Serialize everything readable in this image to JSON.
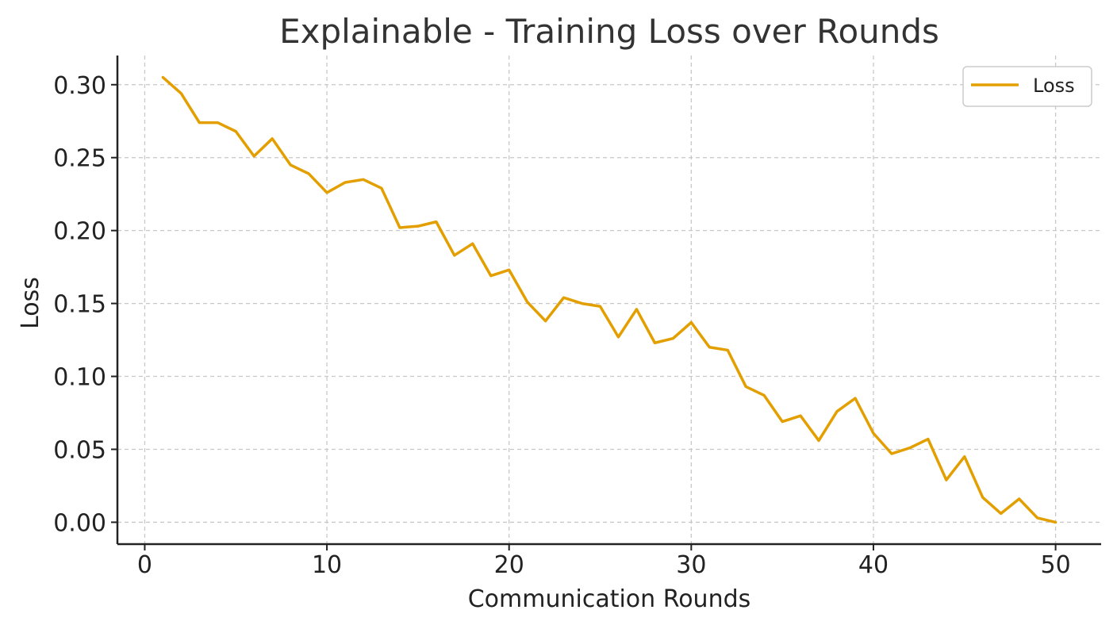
{
  "chart_data": {
    "type": "line",
    "title": "Explainable - Training Loss over Rounds",
    "xlabel": "Communication Rounds",
    "ylabel": "Loss",
    "xlim": [
      -1.5,
      52.5
    ],
    "ylim": [
      -0.015,
      0.32
    ],
    "xticks": [
      0,
      10,
      20,
      30,
      40,
      50
    ],
    "xtick_labels": [
      "0",
      "10",
      "20",
      "30",
      "40",
      "50"
    ],
    "yticks": [
      0.0,
      0.05,
      0.1,
      0.15,
      0.2,
      0.25,
      0.3
    ],
    "ytick_labels": [
      "0.00",
      "0.05",
      "0.10",
      "0.15",
      "0.20",
      "0.25",
      "0.30"
    ],
    "grid": true,
    "legend_position": "top-right",
    "series": [
      {
        "name": "Loss",
        "color": "#E39F00",
        "x": [
          1,
          2,
          3,
          4,
          5,
          6,
          7,
          8,
          9,
          10,
          11,
          12,
          13,
          14,
          15,
          16,
          17,
          18,
          19,
          20,
          21,
          22,
          23,
          24,
          25,
          26,
          27,
          28,
          29,
          30,
          31,
          32,
          33,
          34,
          35,
          36,
          37,
          38,
          39,
          40,
          41,
          42,
          43,
          44,
          45,
          46,
          47,
          48,
          49,
          50
        ],
        "values": [
          0.305,
          0.294,
          0.274,
          0.274,
          0.268,
          0.251,
          0.263,
          0.245,
          0.239,
          0.226,
          0.233,
          0.235,
          0.229,
          0.202,
          0.203,
          0.206,
          0.183,
          0.191,
          0.169,
          0.173,
          0.151,
          0.138,
          0.154,
          0.15,
          0.148,
          0.127,
          0.146,
          0.123,
          0.126,
          0.137,
          0.12,
          0.118,
          0.093,
          0.087,
          0.069,
          0.073,
          0.056,
          0.076,
          0.085,
          0.061,
          0.047,
          0.051,
          0.057,
          0.029,
          0.045,
          0.017,
          0.006,
          0.016,
          0.003,
          0.0
        ]
      }
    ]
  }
}
